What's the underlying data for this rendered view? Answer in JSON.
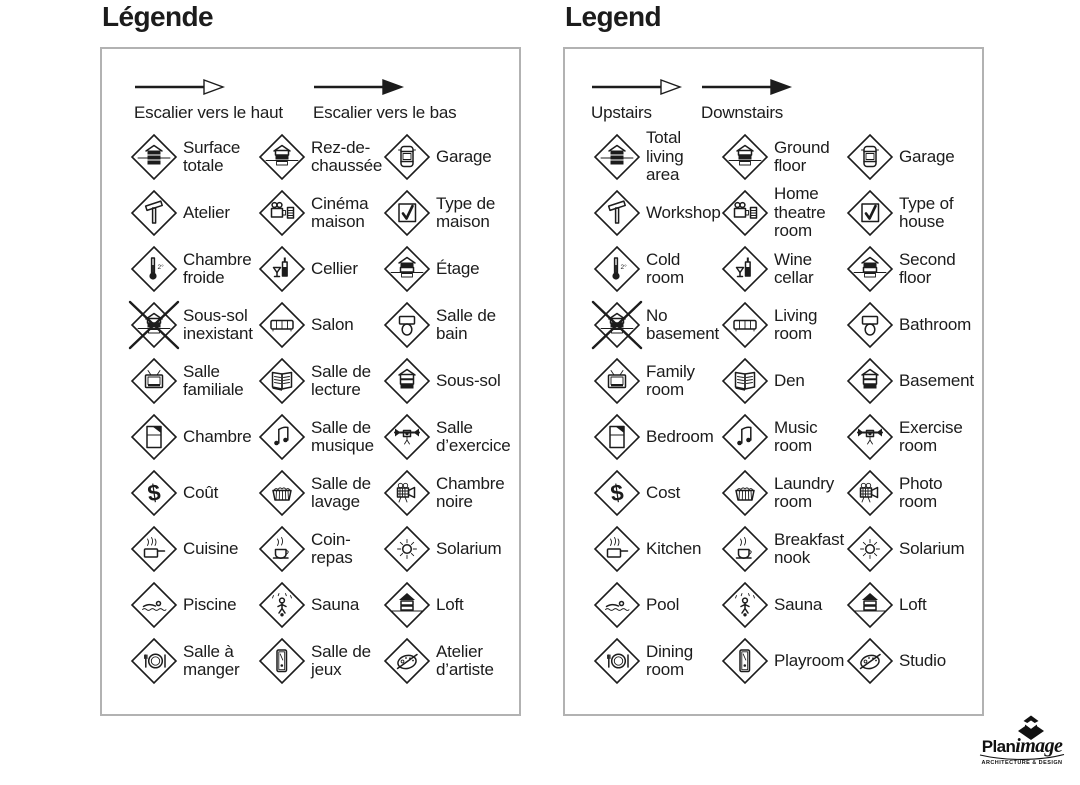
{
  "colors": {
    "ink": "#1c1c1c",
    "panel_border": "#b2b2b2",
    "background": "#ffffff"
  },
  "panels": [
    {
      "id": "fr",
      "title": "Légende",
      "arrows": [
        {
          "icon": "stairs-up-arrow",
          "style": "outline",
          "label": "Escalier vers le haut"
        },
        {
          "icon": "stairs-down-arrow",
          "style": "filled",
          "label": "Escalier vers le bas"
        }
      ],
      "items": [
        {
          "icon": "floors-all",
          "label": "Surface totale"
        },
        {
          "icon": "floors-ground",
          "label": "Rez-de-chaussée"
        },
        {
          "icon": "garage-car",
          "label": "Garage"
        },
        {
          "icon": "hammer",
          "label": "Atelier"
        },
        {
          "icon": "projector",
          "label": "Cinéma maison"
        },
        {
          "icon": "house-check",
          "label": "Type de maison"
        },
        {
          "icon": "thermometer",
          "label": "Chambre froide"
        },
        {
          "icon": "wine",
          "label": "Cellier"
        },
        {
          "icon": "floors-top",
          "label": "Étage"
        },
        {
          "icon": "no-basement",
          "label": "Sous-sol inexistant"
        },
        {
          "icon": "sofa",
          "label": "Salon"
        },
        {
          "icon": "toilet",
          "label": "Salle de bain"
        },
        {
          "icon": "tv",
          "label": "Salle familiale"
        },
        {
          "icon": "book",
          "label": "Salle de lecture"
        },
        {
          "icon": "floors-bottom",
          "label": "Sous-sol"
        },
        {
          "icon": "bed",
          "label": "Chambre"
        },
        {
          "icon": "music-notes",
          "label": "Salle de musique"
        },
        {
          "icon": "barbell",
          "label": "Salle d’exercice"
        },
        {
          "icon": "dollar",
          "label": "Coût"
        },
        {
          "icon": "laundry-basket",
          "label": "Salle de lavage"
        },
        {
          "icon": "camera",
          "label": "Chambre noire"
        },
        {
          "icon": "cooking-pot",
          "label": "Cuisine"
        },
        {
          "icon": "coffee-cup",
          "label": "Coin-repas"
        },
        {
          "icon": "sun",
          "label": "Solarium"
        },
        {
          "icon": "swimmer",
          "label": "Piscine"
        },
        {
          "icon": "sauna-person",
          "label": "Sauna"
        },
        {
          "icon": "loft-roof",
          "label": "Loft"
        },
        {
          "icon": "plate-cutlery",
          "label": "Salle à manger"
        },
        {
          "icon": "pool-table",
          "label": "Salle de jeux"
        },
        {
          "icon": "palette",
          "label": "Atelier d’artiste"
        }
      ]
    },
    {
      "id": "en",
      "title": "Legend",
      "arrows": [
        {
          "icon": "stairs-up-arrow",
          "style": "outline",
          "label": "Upstairs"
        },
        {
          "icon": "stairs-down-arrow",
          "style": "filled",
          "label": "Downstairs"
        }
      ],
      "items": [
        {
          "icon": "floors-all",
          "label": "Total living area"
        },
        {
          "icon": "floors-ground",
          "label": "Ground floor"
        },
        {
          "icon": "garage-car",
          "label": "Garage"
        },
        {
          "icon": "hammer",
          "label": "Workshop"
        },
        {
          "icon": "projector",
          "label": "Home theatre room"
        },
        {
          "icon": "house-check",
          "label": "Type of house"
        },
        {
          "icon": "thermometer",
          "label": "Cold room"
        },
        {
          "icon": "wine",
          "label": "Wine cellar"
        },
        {
          "icon": "floors-top",
          "label": "Second floor"
        },
        {
          "icon": "no-basement",
          "label": "No basement"
        },
        {
          "icon": "sofa",
          "label": "Living room"
        },
        {
          "icon": "toilet",
          "label": "Bathroom"
        },
        {
          "icon": "tv",
          "label": "Family room"
        },
        {
          "icon": "book",
          "label": "Den"
        },
        {
          "icon": "floors-bottom",
          "label": "Basement"
        },
        {
          "icon": "bed",
          "label": "Bedroom"
        },
        {
          "icon": "music-notes",
          "label": "Music room"
        },
        {
          "icon": "barbell",
          "label": "Exercise room"
        },
        {
          "icon": "dollar",
          "label": "Cost"
        },
        {
          "icon": "laundry-basket",
          "label": "Laundry room"
        },
        {
          "icon": "camera",
          "label": "Photo room"
        },
        {
          "icon": "cooking-pot",
          "label": "Kitchen"
        },
        {
          "icon": "coffee-cup",
          "label": "Breakfast nook"
        },
        {
          "icon": "sun",
          "label": "Solarium"
        },
        {
          "icon": "swimmer",
          "label": "Pool"
        },
        {
          "icon": "sauna-person",
          "label": "Sauna"
        },
        {
          "icon": "loft-roof",
          "label": "Loft"
        },
        {
          "icon": "plate-cutlery",
          "label": "Dining room"
        },
        {
          "icon": "pool-table",
          "label": "Playroom"
        },
        {
          "icon": "palette",
          "label": "Studio"
        }
      ]
    }
  ],
  "logo": {
    "brand_bold": "Plan",
    "brand_script": "image",
    "tagline": "ARCHITECTURE & DESIGN"
  }
}
